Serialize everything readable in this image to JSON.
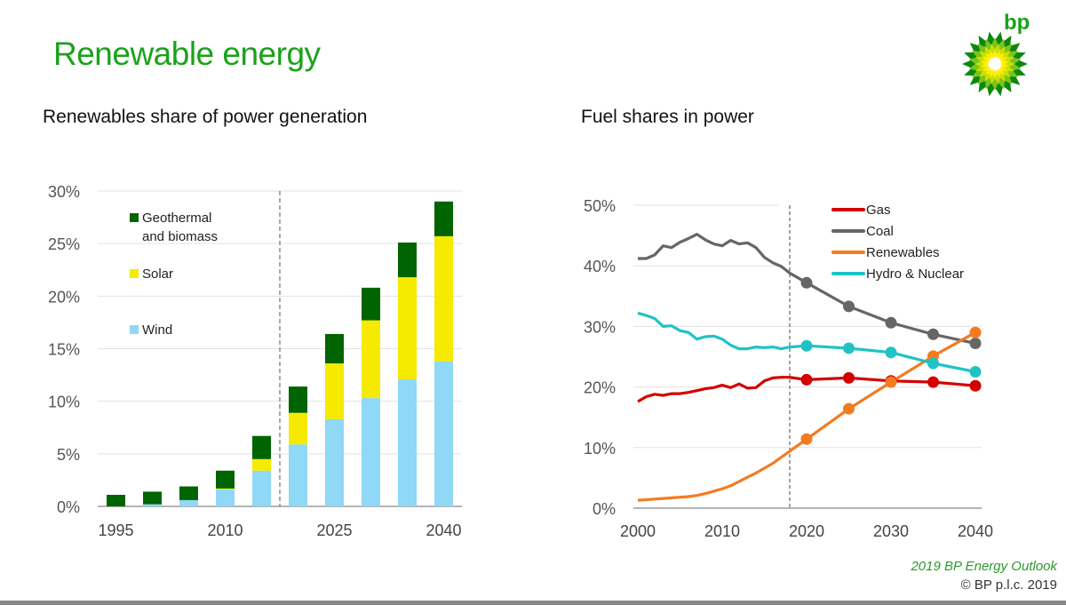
{
  "header": {
    "title": "Renewable energy",
    "logo_text": "bp"
  },
  "footer": {
    "source": "2019 BP Energy Outlook",
    "copyright": "© BP p.l.c. 2019"
  },
  "colors": {
    "geo": "#006400",
    "solar": "#f5ea00",
    "wind": "#8fd8f6",
    "gas": "#d40000",
    "coal": "#666666",
    "renewables": "#f47b20",
    "hydro": "#1fc3c6",
    "brand_green": "#1aa21a"
  },
  "chart_data": [
    {
      "type": "bar",
      "stacked": true,
      "title": "Renewables share of power generation",
      "categories": [
        "1995",
        "2000",
        "2005",
        "2010",
        "2015",
        "2020",
        "2025",
        "2030",
        "2035",
        "2040"
      ],
      "tick_labels": [
        "1995",
        "2010",
        "2025",
        "2040"
      ],
      "y_ticks": [
        "0%",
        "5%",
        "10%",
        "15%",
        "20%",
        "25%",
        "30%"
      ],
      "ylim": [
        0,
        30
      ],
      "forecast_divider_after": "2015",
      "legend_placement": "top-left",
      "series": [
        {
          "name": "Wind",
          "key": "wind",
          "values": [
            0,
            0.2,
            0.6,
            1.6,
            3.4,
            5.9,
            8.3,
            10.3,
            12.1,
            13.8
          ]
        },
        {
          "name": "Solar",
          "key": "solar",
          "values": [
            0,
            0,
            0,
            0.1,
            1.1,
            3.0,
            5.3,
            7.4,
            9.7,
            11.9
          ]
        },
        {
          "name": "Geothermal and biomass",
          "key": "geo",
          "values": [
            1.1,
            1.2,
            1.3,
            1.7,
            2.2,
            2.5,
            2.8,
            3.1,
            3.3,
            3.3
          ]
        }
      ],
      "legend": [
        {
          "key": "geo",
          "lines": [
            "Geothermal",
            "and biomass"
          ]
        },
        {
          "key": "solar",
          "lines": [
            "Solar"
          ]
        },
        {
          "key": "wind",
          "lines": [
            "Wind"
          ]
        }
      ]
    },
    {
      "type": "line",
      "title": "Fuel shares in power",
      "x": [
        2000,
        2001,
        2002,
        2003,
        2004,
        2005,
        2006,
        2007,
        2008,
        2009,
        2010,
        2011,
        2012,
        2013,
        2014,
        2015,
        2016,
        2017,
        2018,
        2020,
        2025,
        2030,
        2035,
        2040
      ],
      "marker_from": 2020,
      "xlim": [
        2000,
        2040
      ],
      "x_ticks": [
        "2000",
        "2010",
        "2020",
        "2030",
        "2040"
      ],
      "y_ticks": [
        "0%",
        "10%",
        "20%",
        "30%",
        "40%",
        "50%"
      ],
      "ylim": [
        0,
        50
      ],
      "forecast_divider": 2018,
      "legend_placement": "top-right",
      "series": [
        {
          "name": "Gas",
          "key": "gas",
          "values": [
            17.6,
            18.4,
            18.8,
            18.6,
            18.9,
            18.9,
            19.1,
            19.4,
            19.7,
            19.9,
            20.3,
            19.9,
            20.5,
            19.8,
            19.9,
            21.0,
            21.5,
            21.6,
            21.6,
            21.2,
            21.5,
            21.0,
            20.8,
            20.2
          ]
        },
        {
          "name": "Coal",
          "key": "coal",
          "values": [
            41.2,
            41.2,
            41.8,
            43.3,
            43.0,
            43.9,
            44.5,
            45.2,
            44.3,
            43.6,
            43.3,
            44.2,
            43.6,
            43.8,
            43.0,
            41.4,
            40.5,
            39.9,
            38.8,
            37.2,
            33.3,
            30.6,
            28.7,
            27.2
          ]
        },
        {
          "name": "Renewables",
          "key": "renewables",
          "values": [
            1.3,
            1.4,
            1.5,
            1.6,
            1.7,
            1.8,
            1.9,
            2.1,
            2.4,
            2.8,
            3.2,
            3.7,
            4.4,
            5.1,
            5.8,
            6.6,
            7.4,
            8.4,
            9.4,
            11.4,
            16.4,
            20.8,
            25.1,
            29.0
          ]
        },
        {
          "name": "Hydro & Nuclear",
          "key": "hydro",
          "values": [
            32.2,
            31.8,
            31.3,
            30.0,
            30.1,
            29.3,
            29.0,
            27.9,
            28.3,
            28.4,
            27.9,
            26.9,
            26.3,
            26.3,
            26.6,
            26.5,
            26.6,
            26.3,
            26.6,
            26.8,
            26.4,
            25.7,
            23.9,
            22.5
          ]
        }
      ]
    }
  ]
}
